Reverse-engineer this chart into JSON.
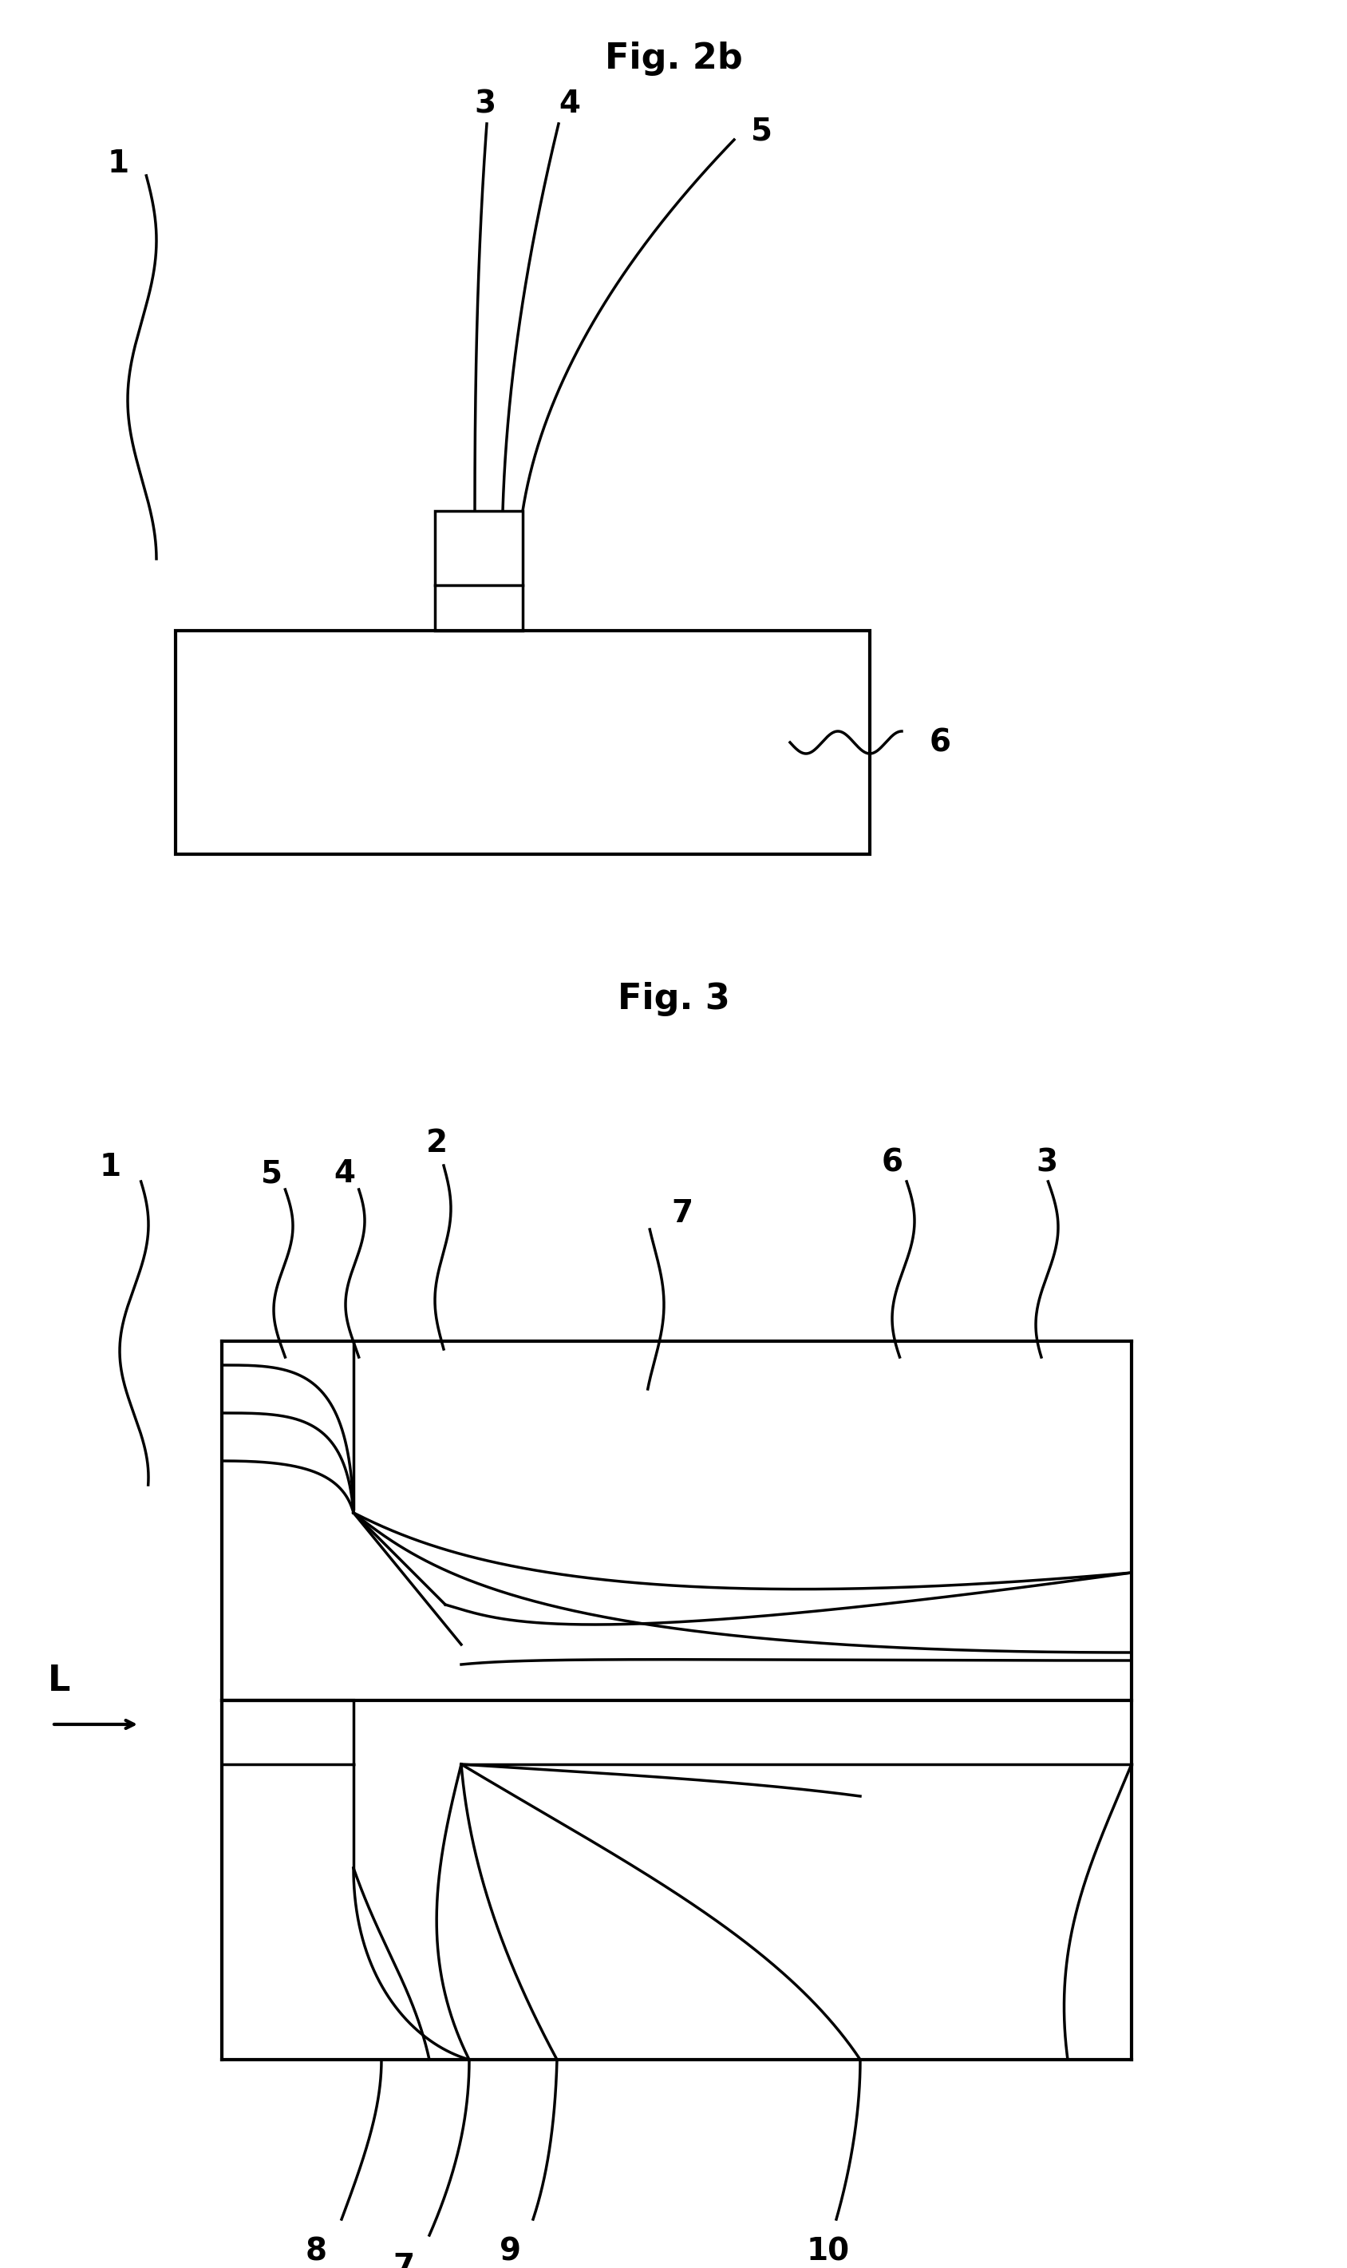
{
  "fig2b_title": "Fig. 2b",
  "fig3_title": "Fig. 3",
  "bg_color": "#ffffff",
  "line_color": "#000000",
  "font_size_title": 32,
  "font_size_label": 28
}
